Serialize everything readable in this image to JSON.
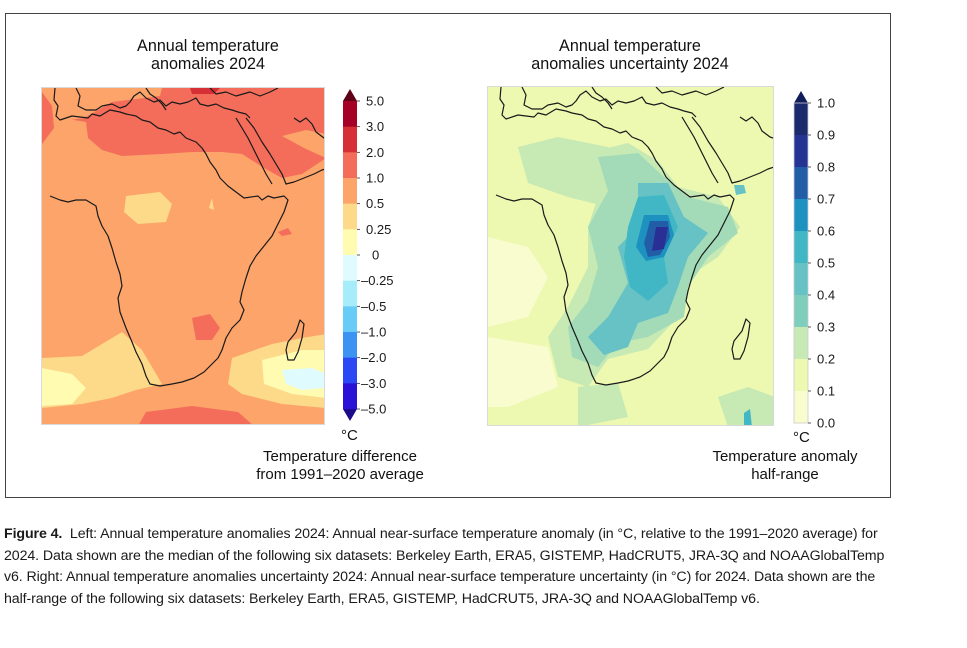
{
  "figure": {
    "left_panel": {
      "title_line1": "Annual temperature",
      "title_line2": "anomalies 2024",
      "colorbar": {
        "unit": "°C",
        "label_line1": "Temperature difference",
        "label_line2": "from 1991–2020 average",
        "ticks": [
          "5.0",
          "3.0",
          "2.0",
          "1.0",
          "0.5",
          "0.25",
          "0",
          "–0.25",
          "–0.5",
          "–1.0",
          "–2.0",
          "–3.0",
          "–5.0"
        ],
        "colors_top_to_bottom": [
          "#a50026",
          "#d62f35",
          "#f46d5b",
          "#fca46a",
          "#fdd98a",
          "#fffbb0",
          "#e0fbfe",
          "#a7ecfb",
          "#69ccf6",
          "#3d93f1",
          "#2a48f3",
          "#2a11d6"
        ],
        "extend_top_color": "#5e0016",
        "extend_bottom_color": "#1b0a8a"
      }
    },
    "right_panel": {
      "title_line1": "Annual temperature",
      "title_line2": "anomalies uncertainty 2024",
      "colorbar": {
        "unit": "°C",
        "label_line1": "Temperature anomaly",
        "label_line2": "half-range",
        "ticks": [
          "1.0",
          "0.9",
          "0.8",
          "0.7",
          "0.6",
          "0.5",
          "0.4",
          "0.3",
          "0.2",
          "0.1",
          "0.0"
        ],
        "colors_top_to_bottom": [
          "#1a2a6c",
          "#253494",
          "#225ea8",
          "#1d91c0",
          "#41b6c4",
          "#66c2c4",
          "#7fcdbb",
          "#c7e9b4",
          "#edf8b1",
          "#f8fccf"
        ],
        "extend_top_color": "#0f1d58"
      }
    },
    "map_palette": {
      "anomaly_bg": "#fca46a",
      "anomaly_warm": "#f46d5b",
      "anomaly_mild": "#fdd98a",
      "anomaly_neutral": "#fffbb0",
      "anomaly_cool": "#e0fbfe",
      "anomaly_hot": "#d62f35",
      "uncert_bg": "#edf8b1",
      "uncert_low": "#f8fccf",
      "uncert_02": "#c7e9b4",
      "uncert_03": "#a3dbb8",
      "uncert_04": "#66c2c4",
      "uncert_05": "#41b6c4",
      "uncert_06": "#1d91c0",
      "uncert_07": "#225ea8",
      "uncert_09": "#2a2f96",
      "coast": "#1a1a1a"
    }
  },
  "caption": {
    "label": "Figure 4.",
    "text": "Left: Annual temperature anomalies 2024: Annual near-surface temperature anomaly (in °C, relative to the 1991–2020 average) for 2024. Data shown are the median of the following six datasets: Berkeley Earth, ERA5, GISTEMP, HadCRUT5, JRA-3Q and NOAAGlobalTemp v6. Right: Annual temperature anomalies uncertainty 2024: Annual near-surface temperature uncertainty (in °C) for 2024. Data shown are the half-range of the following six datasets: Berkeley Earth, ERA5, GISTEMP, HadCRUT5, JRA-3Q and NOAAGlobalTemp v6."
  }
}
